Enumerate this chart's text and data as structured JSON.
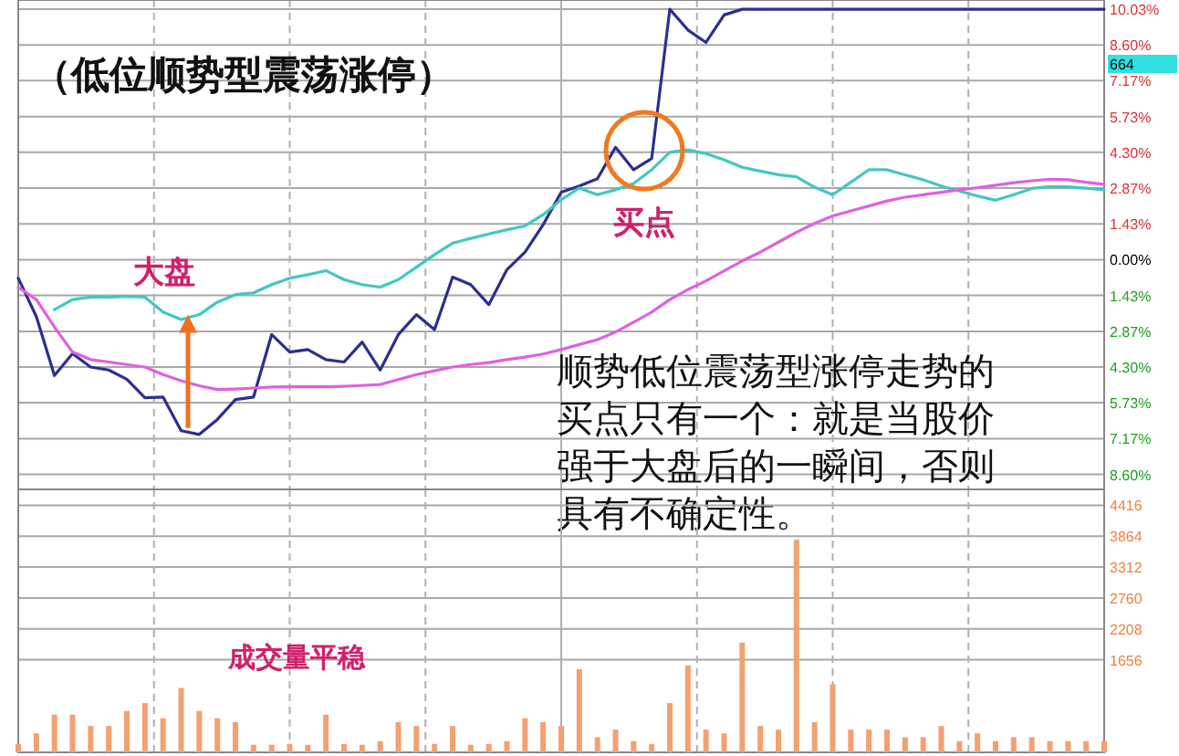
{
  "chart_data": [
    {
      "type": "line",
      "title": "（低位顺势型震荡涨停）",
      "categories": [
        null,
        null,
        null,
        null,
        null,
        null,
        null,
        null,
        null,
        null,
        null,
        null,
        null,
        null,
        null,
        null,
        null,
        null,
        null,
        null,
        null,
        null,
        null,
        null,
        null,
        null,
        null,
        null,
        null,
        null,
        null,
        null,
        null,
        null,
        null,
        null,
        null,
        null,
        null,
        null,
        null,
        null,
        null,
        null,
        null,
        null,
        null,
        null,
        null,
        null,
        null,
        null,
        null,
        null,
        null,
        null,
        null,
        null,
        null,
        null,
        null
      ],
      "ylim": [
        -9.2,
        10.4
      ],
      "yticks": [
        {
          "value": -8.6,
          "label": "8.60%"
        },
        {
          "value": -7.17,
          "label": "7.17%"
        },
        {
          "value": -5.73,
          "label": "5.73%"
        },
        {
          "value": -4.3,
          "label": "4.30%"
        },
        {
          "value": -2.87,
          "label": "2.87%"
        },
        {
          "value": -1.43,
          "label": "1.43%"
        },
        {
          "value": 0,
          "label": "0.00%"
        },
        {
          "value": 1.43,
          "label": "1.43%"
        },
        {
          "value": 2.87,
          "label": "2.87%"
        },
        {
          "value": 4.3,
          "label": "4.30%"
        },
        {
          "value": 5.73,
          "label": "5.73%"
        },
        {
          "value": 7.17,
          "label": "7.17%"
        },
        {
          "value": 8.6,
          "label": "8.60%"
        },
        {
          "value": 10.03,
          "label": "10.03%"
        }
      ],
      "tick_labels": "y",
      "grid": true,
      "series": [
        {
          "color": "#2b2f8f",
          "values": [
            -0.74,
            -2.28,
            -4.64,
            -3.76,
            -4.3,
            -4.42,
            -4.79,
            -5.53,
            -5.5,
            -6.85,
            -7.0,
            -6.4,
            -5.6,
            -5.5,
            -3.0,
            -3.7,
            -3.6,
            -4.0,
            -4.1,
            -3.3,
            -4.42,
            -3.0,
            -2.2,
            -2.8,
            -0.7,
            -1.0,
            -1.8,
            -0.4,
            0.3,
            1.4,
            2.7,
            2.95,
            3.24,
            4.5,
            3.6,
            4.05,
            10.03,
            9.2,
            8.7,
            9.8,
            10.03,
            10.03,
            10.03,
            10.03,
            10.03,
            10.03,
            10.03,
            10.03,
            10.03,
            10.03,
            10.03,
            10.03,
            10.03,
            10.03,
            10.03,
            10.03,
            10.03,
            10.03,
            10.03,
            10.03,
            10.03
          ]
        },
        {
          "color": "#40c8c0",
          "values": [
            null,
            null,
            -2.0,
            -1.6,
            -1.5,
            -1.5,
            -1.47,
            -1.5,
            -2.1,
            -2.4,
            -2.2,
            -1.7,
            -1.4,
            -1.33,
            -1.0,
            -0.74,
            -0.6,
            -0.44,
            -0.8,
            -1.0,
            -1.1,
            -0.8,
            -0.3,
            0.2,
            0.66,
            0.85,
            1.03,
            1.2,
            1.35,
            1.8,
            2.4,
            2.87,
            2.6,
            2.8,
            3.05,
            3.6,
            4.3,
            4.4,
            4.25,
            4.0,
            3.7,
            3.55,
            3.4,
            3.32,
            2.9,
            2.6,
            3.1,
            3.6,
            3.6,
            3.4,
            3.2,
            2.95,
            2.75,
            2.55,
            2.38,
            2.6,
            2.85,
            2.93,
            2.92,
            2.86,
            2.8
          ]
        },
        {
          "color": "#e060e0",
          "values": [
            -1.11,
            -1.6,
            -2.7,
            -3.7,
            -4.0,
            -4.1,
            -4.2,
            -4.3,
            -4.6,
            -4.85,
            -5.05,
            -5.2,
            -5.18,
            -5.14,
            -5.1,
            -5.09,
            -5.09,
            -5.09,
            -5.07,
            -5.04,
            -5.0,
            -4.8,
            -4.6,
            -4.45,
            -4.3,
            -4.2,
            -4.12,
            -4.0,
            -3.9,
            -3.78,
            -3.6,
            -3.4,
            -3.2,
            -2.9,
            -2.5,
            -2.1,
            -1.6,
            -1.2,
            -0.85,
            -0.45,
            -0.05,
            0.3,
            0.7,
            1.1,
            1.45,
            1.75,
            1.95,
            2.15,
            2.35,
            2.5,
            2.6,
            2.7,
            2.8,
            2.88,
            2.98,
            3.08,
            3.16,
            3.22,
            3.2,
            3.1,
            3.02
          ]
        }
      ],
      "annotations": [
        {
          "text": "大盘",
          "y": -2.2
        },
        {
          "text": "买点",
          "y": 4.0
        },
        "顺势低位震荡型涨停走势的买点只有一个：就是当股价强于大盘后的一瞬间，否则具有不确定性。",
        "664"
      ]
    },
    {
      "type": "bar",
      "categories": [
        null,
        null,
        null,
        null,
        null,
        null,
        null,
        null,
        null,
        null,
        null,
        null,
        null,
        null,
        null,
        null,
        null,
        null,
        null,
        null,
        null,
        null,
        null,
        null,
        null,
        null,
        null,
        null,
        null,
        null,
        null,
        null,
        null,
        null,
        null,
        null,
        null,
        null,
        null,
        null,
        null,
        null,
        null,
        null,
        null,
        null,
        null,
        null,
        null,
        null,
        null,
        null,
        null,
        null,
        null,
        null,
        null,
        null,
        null,
        null,
        null
      ],
      "ylim": [
        0,
        4700
      ],
      "yticks": [
        1656,
        2208,
        2760,
        3312,
        3864,
        4416
      ],
      "tick_labels": "y",
      "grid": true,
      "series": [
        {
          "color": "#f4a070",
          "values": [
            150,
            340,
            675,
            675,
            470,
            470,
            740,
            880,
            610,
            1150,
            740,
            610,
            540,
            135,
            135,
            150,
            135,
            675,
            150,
            135,
            200,
            540,
            470,
            150,
            470,
            135,
            150,
            200,
            610,
            540,
            470,
            1485,
            270,
            405,
            200,
            150,
            880,
            1550,
            405,
            340,
            1960,
            470,
            405,
            3800,
            540,
            1215,
            405,
            405,
            405,
            270,
            270,
            470,
            200,
            340,
            200,
            270,
            270,
            200,
            200,
            200,
            200
          ]
        }
      ],
      "annotations": [
        "成交量平稳"
      ]
    }
  ]
}
